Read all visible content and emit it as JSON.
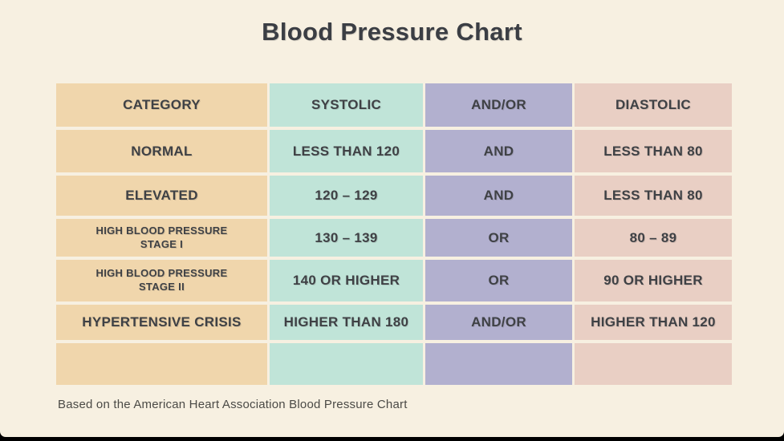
{
  "page": {
    "title": "Blood Pressure Chart",
    "source_note": "Based on the American Heart Association Blood Pressure Chart"
  },
  "colors": {
    "background": "#f7f0e1",
    "category_column": "#f0d6ac",
    "systolic_column": "#c0e4d8",
    "andor_column": "#b2b0cf",
    "diastolic_column": "#e9cfc4",
    "text": "#3f4145",
    "bottom_bar": "#000000"
  },
  "chart_data": {
    "type": "table",
    "title": "Blood Pressure Chart",
    "columns": [
      "CATEGORY",
      "SYSTOLIC",
      "AND/OR",
      "DIASTOLIC"
    ],
    "rows": [
      [
        "NORMAL",
        "LESS THAN 120",
        "AND",
        "LESS THAN 80"
      ],
      [
        "ELEVATED",
        "120 – 129",
        "AND",
        "LESS THAN 80"
      ],
      [
        "HIGH BLOOD PRESSURE\nSTAGE I",
        "130 – 139",
        "OR",
        "80 – 89"
      ],
      [
        "HIGH BLOOD PRESSURE\nSTAGE II",
        "140 OR HIGHER",
        "OR",
        "90 OR HIGHER"
      ],
      [
        "HYPERTENSIVE CRISIS",
        "HIGHER THAN 180",
        "AND/OR",
        "HIGHER THAN 120"
      ],
      [
        "",
        "",
        "",
        ""
      ]
    ],
    "note": "Based on the American Heart Association Blood Pressure Chart",
    "layout_hint": "header row + 5 data rows + 1 empty color-band row; no gridlines, cream gaps between cells"
  }
}
